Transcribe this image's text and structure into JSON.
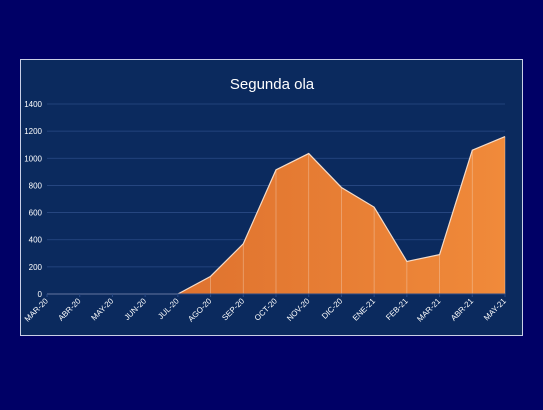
{
  "chart_data": {
    "type": "area",
    "title": "Segunda ola",
    "xlabel": "",
    "ylabel": "",
    "categories": [
      "MAR-20",
      "ABR-20",
      "MAY-20",
      "JUN-20",
      "JUL-20",
      "AGO-20",
      "SEP-20",
      "OCT-20",
      "NOV-20",
      "DIC-20",
      "ENE-21",
      "FEB-21",
      "MAR-21",
      "ABR-21",
      "MAY-21"
    ],
    "values": [
      0,
      0,
      0,
      0,
      0,
      130,
      370,
      915,
      1035,
      785,
      640,
      240,
      290,
      1060,
      1160
    ],
    "ylim": [
      0,
      1400
    ],
    "yticks": [
      0,
      200,
      400,
      600,
      800,
      1000,
      1200,
      1400
    ],
    "grid": true,
    "legend": "none",
    "colors": {
      "background": "#000066",
      "plot_background": "#0b2a5e",
      "area_start": "#d8692a",
      "area_end": "#f08a3a",
      "area_stroke": "#f6dcc8",
      "gridline": "#2a4a86",
      "text": "#ffffff"
    }
  }
}
